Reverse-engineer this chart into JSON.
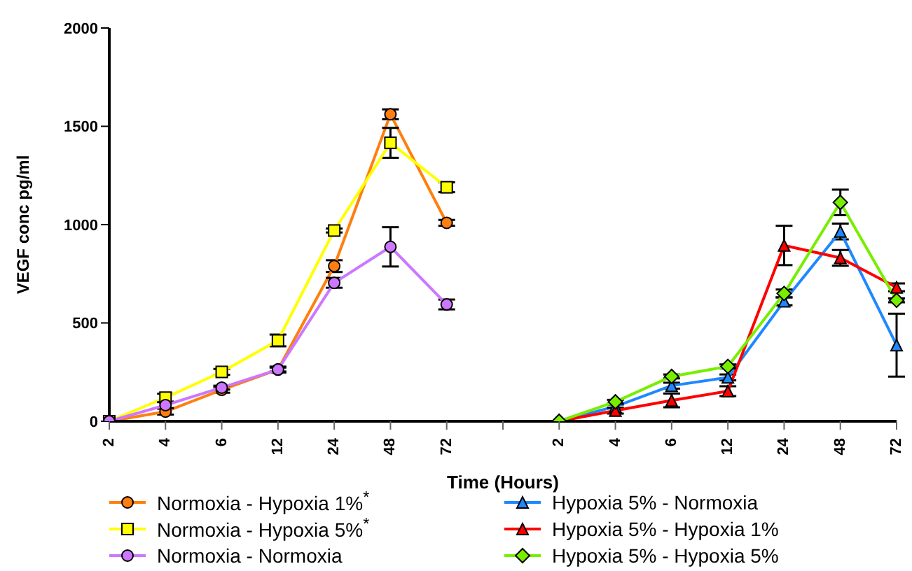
{
  "chart_data": {
    "type": "line",
    "xlabel": "Time (Hours)",
    "ylabel": "VEGF conc pg/ml",
    "categories": [
      "2",
      "4",
      "6",
      "12",
      "24",
      "48",
      "72",
      null,
      "2",
      "4",
      "6",
      "12",
      "24",
      "48",
      "72"
    ],
    "ylim": [
      0,
      2000
    ],
    "yticks": [
      0,
      500,
      1000,
      1500,
      2000
    ],
    "grid": false,
    "legend": "bottom",
    "series": [
      {
        "name": "Normoxia - Hypoxia 1%$^{*}$",
        "color": "#ff7f0e",
        "marker": "circle",
        "values": [
          0,
          49,
          160,
          263,
          789,
          1561,
          1009,
          null,
          null,
          null,
          null,
          null,
          null,
          null,
          null
        ],
        "errors": [
          null,
          15,
          15,
          15,
          30,
          25,
          15,
          null,
          null,
          null,
          null,
          null,
          null,
          null,
          null
        ]
      },
      {
        "name": "Normoxia - Hypoxia 5%$^{*}$",
        "color": "#ffff00",
        "marker": "square",
        "values": [
          0,
          120,
          251,
          411,
          970,
          1416,
          1190,
          null,
          null,
          null,
          null,
          null,
          null,
          null,
          null
        ],
        "errors": [
          null,
          20,
          15,
          30,
          10,
          76,
          25,
          null,
          null,
          null,
          null,
          null,
          null,
          null,
          null
        ]
      },
      {
        "name": "Normoxia - Normoxia",
        "color": "#cc77ff",
        "marker": "circle",
        "values": [
          0,
          82,
          171,
          263,
          704,
          887,
          594,
          null,
          null,
          null,
          null,
          null,
          null,
          null,
          null
        ],
        "errors": [
          null,
          15,
          10,
          10,
          25,
          100,
          25,
          null,
          null,
          null,
          null,
          null,
          null,
          null,
          null
        ]
      },
      {
        "name": "Hypoxia 5% - Normoxia",
        "color": "#1e88ff",
        "marker": "triangle",
        "values": [
          null,
          null,
          null,
          null,
          null,
          null,
          null,
          null,
          0,
          75,
          181,
          223,
          610,
          965,
          387
        ],
        "errors": [
          null,
          null,
          null,
          null,
          null,
          null,
          null,
          null,
          null,
          10,
          15,
          15,
          20,
          40,
          160
        ]
      },
      {
        "name": "Hypoxia 5% - Hypoxia 1%",
        "color": "#ff0000",
        "marker": "triangle",
        "values": [
          null,
          null,
          null,
          null,
          null,
          null,
          null,
          null,
          0,
          54,
          106,
          153,
          894,
          831,
          681
        ],
        "errors": [
          null,
          null,
          null,
          null,
          null,
          null,
          null,
          null,
          null,
          15,
          35,
          25,
          100,
          40,
          20
        ]
      },
      {
        "name": "Hypoxia 5% - Hypoxia 5%",
        "color": "#77ee00",
        "marker": "diamond",
        "values": [
          null,
          null,
          null,
          null,
          null,
          null,
          null,
          null,
          0,
          99,
          228,
          279,
          650,
          1113,
          615
        ],
        "errors": [
          null,
          null,
          null,
          null,
          null,
          null,
          null,
          null,
          null,
          10,
          10,
          10,
          20,
          65,
          10
        ]
      }
    ]
  }
}
